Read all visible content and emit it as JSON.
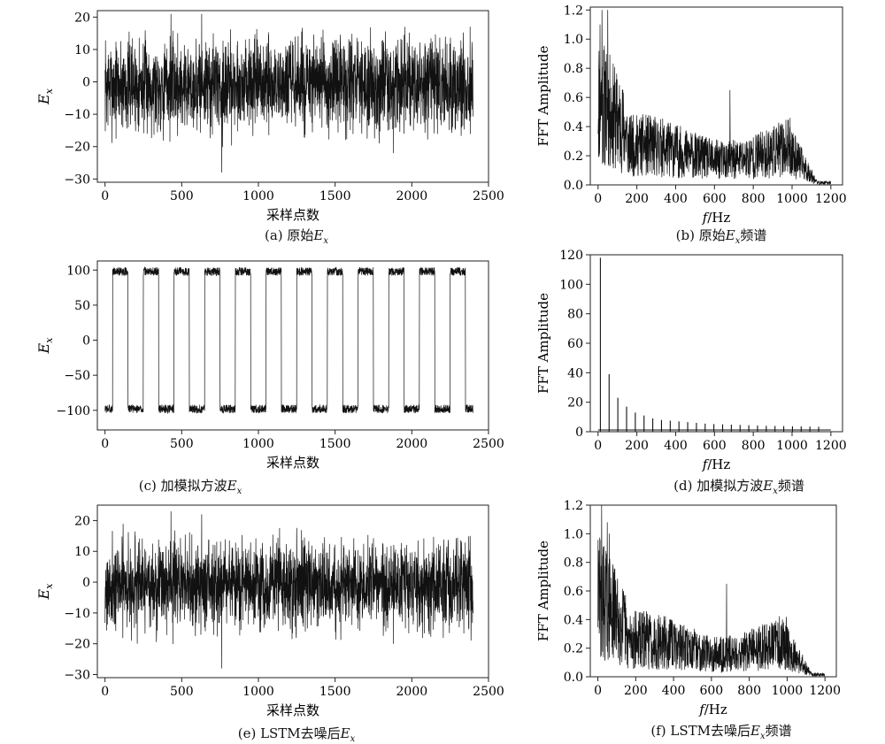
{
  "chart_data": [
    {
      "id": "a",
      "type": "line",
      "xlabel": "采样点数",
      "ylabel_main": "E",
      "ylabel_sub": "x",
      "xlim": [
        -50,
        2500
      ],
      "ylim": [
        -31,
        22
      ],
      "xticks": [
        0,
        500,
        1000,
        1500,
        2000,
        2500
      ],
      "yticks": [
        -30,
        -20,
        -10,
        0,
        10,
        20
      ],
      "caption": {
        "prefix": "(a) 原始",
        "var": "E",
        "sub": "x",
        "suffix": ""
      },
      "signal": {
        "kind": "noise",
        "n": 2400,
        "seed": 7,
        "mean": -1,
        "amplitude": 7,
        "spikes": [
          [
            430,
            21
          ],
          [
            630,
            21
          ],
          [
            760,
            -28
          ],
          [
            1880,
            -22
          ],
          [
            2380,
            17
          ]
        ]
      }
    },
    {
      "id": "b",
      "type": "line",
      "xlabel_main": "f",
      "xlabel_unit": "/Hz",
      "ylabel": "FFT Amplitude",
      "xlim": [
        -40,
        1260
      ],
      "ylim": [
        0,
        1.22
      ],
      "xticks": [
        0,
        200,
        400,
        600,
        800,
        1000,
        1200
      ],
      "yticks": [
        0.0,
        0.2,
        0.4,
        0.6,
        0.8,
        1.0,
        1.2
      ],
      "caption": {
        "prefix": "(b) 原始",
        "var": "E",
        "sub": "x",
        "suffix": "频谱"
      },
      "signal": {
        "kind": "spectrum",
        "n": 1200,
        "seed": 11,
        "fmax": 1200,
        "base_low": 0.35,
        "base_mid": 0.22,
        "cutoff": 1000,
        "peaks": [
          [
            20,
            1.2
          ],
          [
            50,
            1.2
          ],
          [
            10,
            1.1
          ],
          [
            680,
            0.65
          ]
        ]
      }
    },
    {
      "id": "c",
      "type": "line",
      "xlabel": "采样点数",
      "ylabel_main": "E",
      "ylabel_sub": "x",
      "xlim": [
        -50,
        2500
      ],
      "ylim": [
        -128,
        113
      ],
      "xticks": [
        0,
        500,
        1000,
        1500,
        2000,
        2500
      ],
      "yticks": [
        -100,
        -50,
        0,
        50,
        100
      ],
      "caption": {
        "prefix": "(c) 加模拟方波",
        "var": "E",
        "sub": "x",
        "suffix": ""
      },
      "signal": {
        "kind": "square",
        "n": 2400,
        "seed": 3,
        "level": 98,
        "period": 100,
        "noise": 6
      }
    },
    {
      "id": "d",
      "type": "bar",
      "xlabel_main": "f",
      "xlabel_unit": "/Hz",
      "ylabel": "FFT Amplitude",
      "xlim": [
        -40,
        1260
      ],
      "ylim": [
        0,
        120
      ],
      "xticks": [
        0,
        200,
        400,
        600,
        800,
        1000,
        1200
      ],
      "yticks": [
        0,
        20,
        40,
        60,
        80,
        100,
        120
      ],
      "caption": {
        "prefix": "(d) 加模拟方波",
        "var": "E",
        "sub": "x",
        "suffix": "频谱"
      },
      "harmonics": {
        "f0": 12,
        "spacing": 45,
        "values": [
          118,
          39,
          23,
          17,
          13,
          11,
          9,
          8,
          7.5,
          7,
          6.5,
          6,
          5.5,
          5.2,
          5,
          4.8,
          4.6,
          4.4,
          4.2,
          4,
          3.9,
          3.8,
          3.7,
          3.6,
          3.5,
          3.4
        ]
      }
    },
    {
      "id": "e",
      "type": "line",
      "xlabel": "采样点数",
      "ylabel_main": "E",
      "ylabel_sub": "x",
      "xlim": [
        -50,
        2500
      ],
      "ylim": [
        -31,
        25
      ],
      "xticks": [
        0,
        500,
        1000,
        1500,
        2000,
        2500
      ],
      "yticks": [
        -30,
        -20,
        -10,
        0,
        10,
        20
      ],
      "caption": {
        "prefix": "(e) LSTM去噪后",
        "var": "E",
        "sub": "x",
        "suffix": ""
      },
      "signal": {
        "kind": "noise",
        "n": 2400,
        "seed": 21,
        "mean": -1,
        "amplitude": 7,
        "spikes": [
          [
            430,
            23
          ],
          [
            630,
            22
          ],
          [
            760,
            -28
          ],
          [
            1880,
            -20
          ],
          [
            2380,
            15
          ]
        ]
      }
    },
    {
      "id": "f",
      "type": "line",
      "xlabel_main": "f",
      "xlabel_unit": "/Hz",
      "ylabel": "FFT Amplitude",
      "xlim": [
        -40,
        1260
      ],
      "ylim": [
        0,
        1.2
      ],
      "xticks": [
        0,
        200,
        400,
        600,
        800,
        1000,
        1200
      ],
      "yticks": [
        0.0,
        0.2,
        0.4,
        0.6,
        0.8,
        1.0,
        1.2
      ],
      "caption": {
        "prefix": "(f) LSTM去噪后",
        "var": "E",
        "sub": "x",
        "suffix": "频谱"
      },
      "signal": {
        "kind": "spectrum",
        "n": 1200,
        "seed": 29,
        "fmax": 1200,
        "base_low": 0.33,
        "base_mid": 0.21,
        "cutoff": 1000,
        "peaks": [
          [
            20,
            1.2
          ],
          [
            50,
            1.08
          ],
          [
            60,
            1.0
          ],
          [
            680,
            0.65
          ]
        ]
      }
    }
  ]
}
